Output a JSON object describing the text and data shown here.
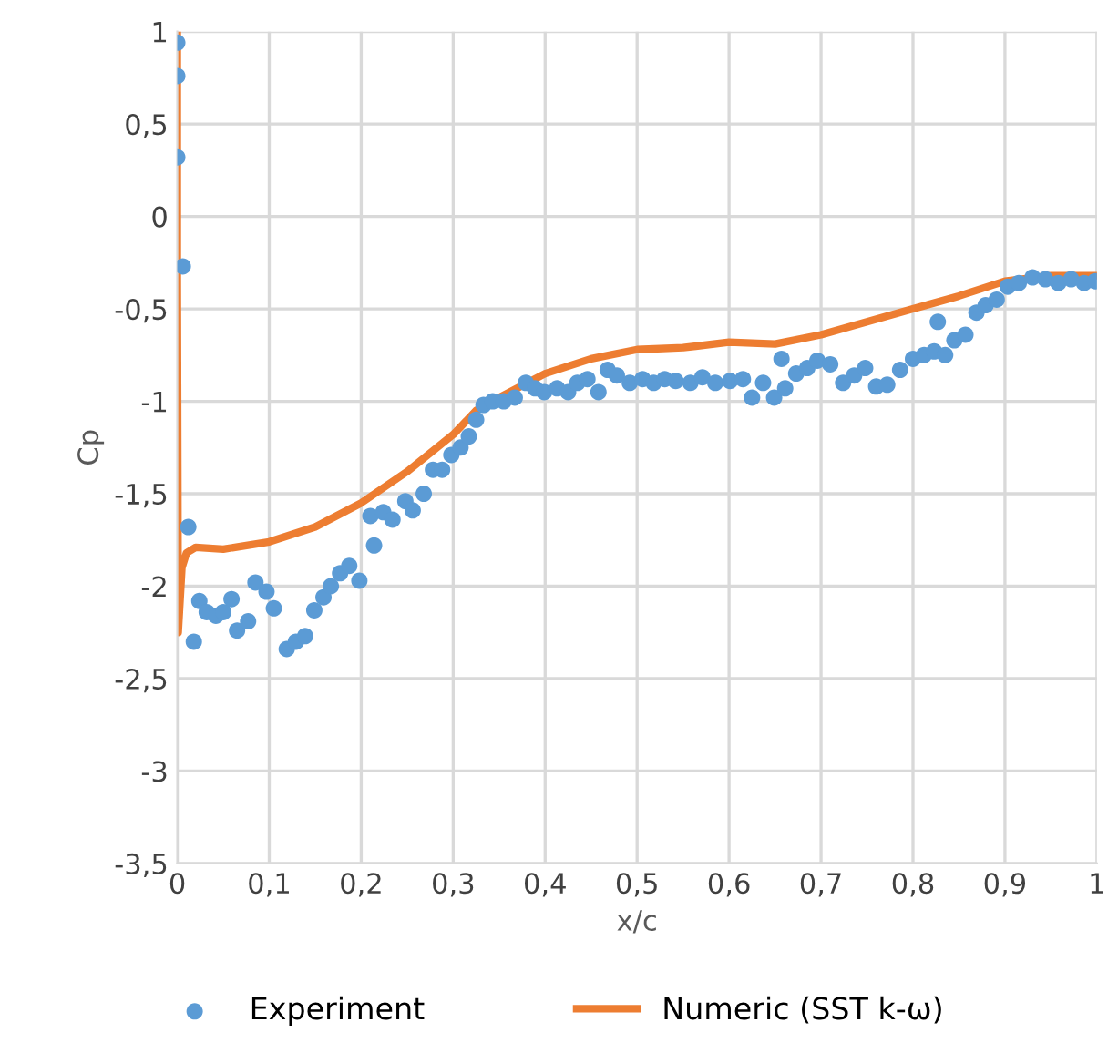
{
  "chart_data": {
    "type": "scatter",
    "xlabel": "x/c",
    "ylabel": "Cp",
    "xlim": [
      0,
      1
    ],
    "ylim": [
      -3.5,
      1
    ],
    "xticks": [
      0,
      {
        "value": 0.1,
        "label": "0,1"
      },
      {
        "value": 0.2,
        "label": "0,2"
      },
      {
        "value": 0.3,
        "label": "0,3"
      },
      {
        "value": 0.4,
        "label": "0,4"
      },
      {
        "value": 0.5,
        "label": "0,5"
      },
      {
        "value": 0.6,
        "label": "0,6"
      },
      {
        "value": 0.7,
        "label": "0,7"
      },
      {
        "value": 0.8,
        "label": "0,8"
      },
      {
        "value": 0.9,
        "label": "0,9"
      },
      1
    ],
    "yticks": [
      {
        "value": -3.5,
        "label": "-3,5"
      },
      -3,
      {
        "value": -2.5,
        "label": "-2,5"
      },
      -2,
      {
        "value": -1.5,
        "label": "-1,5"
      },
      -1,
      {
        "value": -0.5,
        "label": "-0,5"
      },
      0,
      {
        "value": 0.5,
        "label": "0,5"
      },
      1
    ],
    "grid": true,
    "legend": "bottom",
    "series": [
      {
        "name": "Experiment",
        "marker": "circle",
        "color": "#5b9bd5",
        "x": [
          0.0,
          0.0,
          0.0,
          0.006,
          0.012,
          0.018,
          0.024,
          0.032,
          0.042,
          0.05,
          0.059,
          0.065,
          0.077,
          0.085,
          0.097,
          0.105,
          0.119,
          0.129,
          0.139,
          0.149,
          0.159,
          0.167,
          0.177,
          0.187,
          0.198,
          0.21,
          0.214,
          0.224,
          0.234,
          0.248,
          0.256,
          0.268,
          0.278,
          0.288,
          0.298,
          0.308,
          0.317,
          0.325,
          0.333,
          0.343,
          0.355,
          0.367,
          0.379,
          0.389,
          0.399,
          0.413,
          0.425,
          0.435,
          0.446,
          0.458,
          0.468,
          0.478,
          0.492,
          0.506,
          0.518,
          0.53,
          0.542,
          0.558,
          0.571,
          0.585,
          0.601,
          0.615,
          0.625,
          0.637,
          0.649,
          0.657,
          0.661,
          0.673,
          0.685,
          0.696,
          0.71,
          0.724,
          0.736,
          0.748,
          0.76,
          0.772,
          0.786,
          0.8,
          0.812,
          0.823,
          0.827,
          0.835,
          0.845,
          0.857,
          0.869,
          0.879,
          0.891,
          0.903,
          0.915,
          0.93,
          0.944,
          0.958,
          0.972,
          0.986,
          0.998
        ],
        "values": [
          0.94,
          0.76,
          0.32,
          -0.27,
          -1.68,
          -2.3,
          -2.08,
          -2.14,
          -2.16,
          -2.14,
          -2.07,
          -2.24,
          -2.19,
          -1.98,
          -2.03,
          -2.12,
          -2.34,
          -2.3,
          -2.27,
          -2.13,
          -2.06,
          -2.0,
          -1.93,
          -1.89,
          -1.97,
          -1.62,
          -1.78,
          -1.6,
          -1.64,
          -1.54,
          -1.59,
          -1.5,
          -1.37,
          -1.37,
          -1.29,
          -1.25,
          -1.19,
          -1.1,
          -1.02,
          -1.0,
          -1.0,
          -0.98,
          -0.9,
          -0.93,
          -0.95,
          -0.93,
          -0.95,
          -0.9,
          -0.88,
          -0.95,
          -0.83,
          -0.86,
          -0.9,
          -0.88,
          -0.9,
          -0.88,
          -0.89,
          -0.9,
          -0.87,
          -0.9,
          -0.89,
          -0.88,
          -0.98,
          -0.9,
          -0.98,
          -0.77,
          -0.93,
          -0.85,
          -0.82,
          -0.78,
          -0.8,
          -0.9,
          -0.86,
          -0.82,
          -0.92,
          -0.91,
          -0.83,
          -0.77,
          -0.75,
          -0.73,
          -0.57,
          -0.75,
          -0.67,
          -0.64,
          -0.52,
          -0.48,
          -0.45,
          -0.38,
          -0.36,
          -0.33,
          -0.34,
          -0.36,
          -0.34,
          -0.36,
          -0.35
        ]
      },
      {
        "name": "Numeric (SST k-ω)",
        "type": "line",
        "marker": "none",
        "line_style": "solid",
        "color": "#ed7d31",
        "x": [
          0.0,
          0.0,
          0.001,
          0.005,
          0.01,
          0.02,
          0.05,
          0.1,
          0.15,
          0.2,
          0.25,
          0.3,
          0.325,
          0.35,
          0.4,
          0.45,
          0.5,
          0.55,
          0.6,
          0.65,
          0.7,
          0.75,
          0.8,
          0.85,
          0.9,
          0.95,
          1.0
        ],
        "values": [
          1.0,
          -0.3,
          -2.25,
          -1.9,
          -1.82,
          -1.79,
          -1.8,
          -1.76,
          -1.68,
          -1.55,
          -1.38,
          -1.18,
          -1.05,
          -0.98,
          -0.85,
          -0.77,
          -0.72,
          -0.71,
          -0.68,
          -0.69,
          -0.64,
          -0.57,
          -0.5,
          -0.43,
          -0.35,
          -0.32,
          -0.32
        ]
      }
    ]
  }
}
